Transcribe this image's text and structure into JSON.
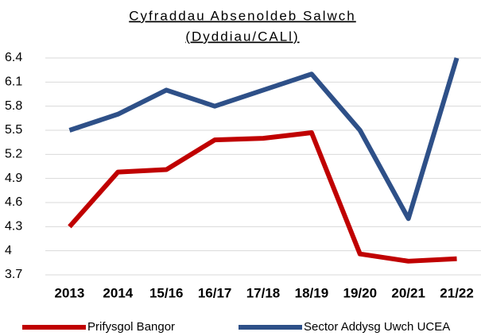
{
  "chart_data": {
    "type": "line",
    "title": [
      "Cyfraddau Absenoldeb Salwch",
      "(Dyddiau/CALl)"
    ],
    "categories": [
      "2013",
      "2014",
      "15/16",
      "16/17",
      "17/18",
      "18/19",
      "19/20",
      "20/21",
      "21/22"
    ],
    "series": [
      {
        "name": "Prifysgol Bangor",
        "color": "#c00000",
        "values": [
          4.3,
          4.98,
          5.01,
          5.38,
          5.4,
          5.47,
          3.96,
          3.87,
          3.9
        ]
      },
      {
        "name": "Sector Addysg Uwch UCEA",
        "color": "#2e5088",
        "values": [
          5.5,
          5.7,
          6.0,
          5.8,
          6.0,
          6.2,
          5.5,
          4.4,
          6.4
        ]
      }
    ],
    "ylim": [
      3.7,
      6.4
    ],
    "yticks": [
      3.7,
      4,
      4.3,
      4.6,
      4.9,
      5.2,
      5.5,
      5.8,
      6.1,
      6.4
    ],
    "grid": true,
    "legend": "bottom"
  }
}
